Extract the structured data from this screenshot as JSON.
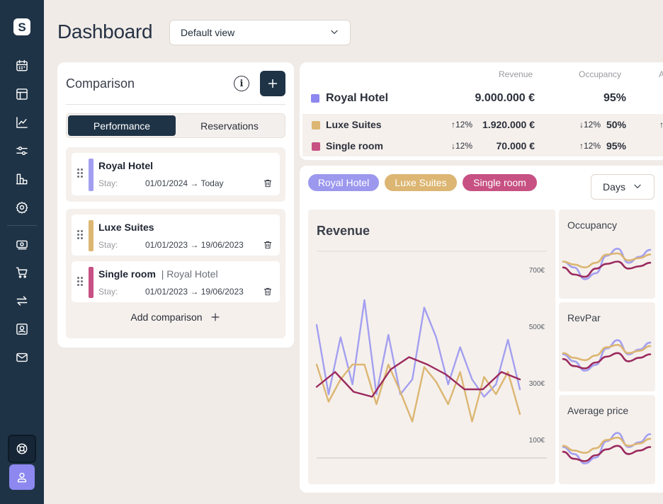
{
  "app": {
    "logo_letter": "S",
    "title": "Dashboard",
    "view_select": "Default view"
  },
  "sidebar": {
    "items": [
      {
        "icon": "calendar-icon"
      },
      {
        "icon": "layout-icon"
      },
      {
        "icon": "line-chart-icon"
      },
      {
        "icon": "sliders-icon"
      },
      {
        "icon": "building-chart-icon"
      },
      {
        "icon": "gear-icon"
      },
      {
        "icon": "money-icon"
      },
      {
        "icon": "cart-icon"
      },
      {
        "icon": "transfer-icon"
      },
      {
        "icon": "contact-card-icon"
      },
      {
        "icon": "mail-icon"
      }
    ],
    "bottom": [
      {
        "icon": "help-icon"
      },
      {
        "icon": "user-icon"
      }
    ]
  },
  "comparison": {
    "title": "Comparison",
    "tabs": [
      {
        "label": "Performance",
        "active": true
      },
      {
        "label": "Reservations",
        "active": false
      }
    ],
    "primary": {
      "name": "Royal Hotel",
      "stay_label": "Stay:",
      "dates": "01/01/2024 → Today",
      "color": "#a39ff0"
    },
    "items": [
      {
        "name": "Luxe Suites",
        "sub": "",
        "stay_label": "Stay:",
        "dates": "01/01/2023 → 19/06/2023",
        "color": "#dcb672"
      },
      {
        "name": "Single room",
        "sub": "| Royal Hotel",
        "stay_label": "Stay:",
        "dates": "01/01/2023 → 19/06/2023",
        "color": "#c75183"
      }
    ],
    "add_label": "Add comparison"
  },
  "summary": {
    "columns": [
      "Revenue",
      "Occupancy",
      "A"
    ],
    "main": {
      "name": "Royal Hotel",
      "revenue": "9.000.000 €",
      "occupancy": "95%",
      "color": "#8c88ef"
    },
    "rows": [
      {
        "name": "Luxe Suites",
        "rev_delta": "↑12%",
        "revenue": "1.920.000 €",
        "occ_delta": "↓12%",
        "occupancy": "50%",
        "extra": "↑",
        "color": "#dcb672"
      },
      {
        "name": "Single room",
        "rev_delta": "↓12%",
        "revenue": "70.000 €",
        "occ_delta": "↑12%",
        "occupancy": "95%",
        "extra": "",
        "color": "#c75183"
      }
    ]
  },
  "filters": {
    "chips": [
      {
        "label": "Royal Hotel",
        "color": "#9c98ee"
      },
      {
        "label": "Luxe Suites",
        "color": "#dcb672"
      },
      {
        "label": "Single room",
        "color": "#c75183"
      }
    ],
    "period": "Days"
  },
  "chart_data": [
    {
      "type": "line",
      "title": "Revenue",
      "yticks": [
        "700€",
        "500€",
        "300€",
        "100€"
      ],
      "ylim": [
        0,
        800
      ],
      "series": [
        {
          "name": "Royal Hotel",
          "color": "#a39ff0",
          "values": [
            520,
            240,
            470,
            280,
            620,
            240,
            480,
            240,
            300,
            590,
            470,
            280,
            430,
            300,
            230,
            280,
            460,
            260
          ]
        },
        {
          "name": "Luxe Suites",
          "color": "#dcb672",
          "values": [
            360,
            210,
            300,
            360,
            360,
            200,
            360,
            250,
            130,
            350,
            290,
            200,
            330,
            130,
            310,
            240,
            330,
            160
          ]
        },
        {
          "name": "Single room",
          "color": "#9b2a5e",
          "values": [
            270,
            330,
            250,
            230,
            340,
            390,
            360,
            320,
            260,
            260,
            330,
            300
          ]
        }
      ]
    },
    {
      "type": "line",
      "title": "Occupancy",
      "series": [
        {
          "name": "Royal Hotel",
          "color": "#a39ff0",
          "values": [
            50,
            40,
            20,
            30,
            60,
            72,
            48,
            58,
            70
          ]
        },
        {
          "name": "Luxe Suites",
          "color": "#dcb672",
          "values": [
            50,
            45,
            40,
            48,
            62,
            64,
            52,
            56,
            62
          ]
        },
        {
          "name": "Single room",
          "color": "#9b2a5e",
          "values": [
            40,
            28,
            24,
            38,
            46,
            50,
            38,
            42,
            48
          ]
        }
      ]
    },
    {
      "type": "line",
      "title": "RevPar",
      "series": [
        {
          "name": "Royal Hotel",
          "color": "#a39ff0",
          "values": [
            50,
            38,
            22,
            32,
            60,
            74,
            50,
            58,
            70
          ]
        },
        {
          "name": "Luxe Suites",
          "color": "#dcb672",
          "values": [
            52,
            44,
            40,
            48,
            62,
            66,
            52,
            56,
            64
          ]
        },
        {
          "name": "Single room",
          "color": "#9b2a5e",
          "values": [
            42,
            30,
            26,
            36,
            46,
            52,
            38,
            44,
            50
          ]
        }
      ]
    },
    {
      "type": "line",
      "title": "Average price",
      "series": [
        {
          "name": "Royal Hotel",
          "color": "#a39ff0",
          "values": [
            50,
            38,
            22,
            32,
            60,
            74,
            50,
            58,
            72
          ]
        },
        {
          "name": "Luxe Suites",
          "color": "#dcb672",
          "values": [
            52,
            44,
            40,
            48,
            62,
            66,
            52,
            56,
            64
          ]
        },
        {
          "name": "Single room",
          "color": "#9b2a5e",
          "values": [
            42,
            30,
            26,
            36,
            46,
            52,
            38,
            44,
            50
          ]
        }
      ]
    }
  ]
}
